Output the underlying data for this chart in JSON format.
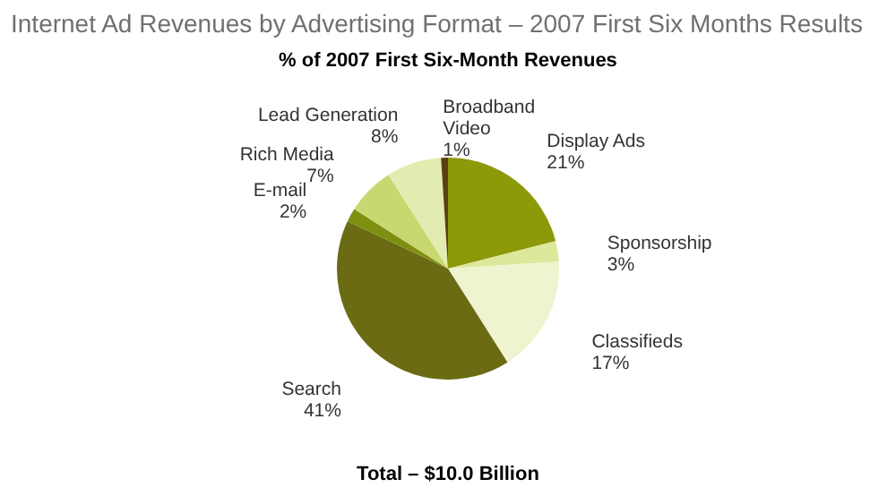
{
  "chart_data": {
    "type": "pie",
    "title": "Internet Ad Revenues by Advertising Format – 2007 First Six Months Results",
    "subtitle": "% of 2007 First Six-Month Revenues",
    "categories": [
      "Display Ads",
      "Sponsorship",
      "Classifieds",
      "Search",
      "E-mail",
      "Rich Media",
      "Lead Generation",
      "Broadband Video"
    ],
    "values": [
      21,
      3,
      17,
      41,
      2,
      7,
      8,
      1
    ],
    "value_labels": [
      "21%",
      "3%",
      "17%",
      "41%",
      "2%",
      "7%",
      "8%",
      "1%"
    ],
    "colors": [
      "#8c9a0a",
      "#dce89a",
      "#eef4cf",
      "#6b6b14",
      "#7f9010",
      "#c8d870",
      "#e2ecb0",
      "#5a4010"
    ],
    "annotations": [
      "Total – $10.0 Billion"
    ]
  }
}
